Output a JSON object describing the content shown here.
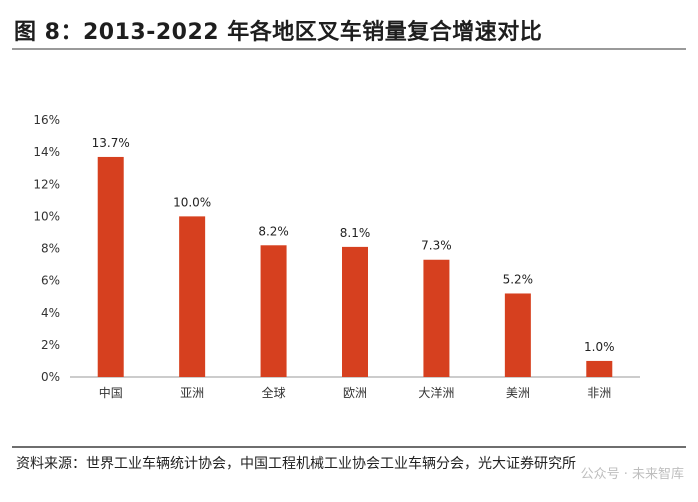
{
  "header": {
    "title": "图 8：2013-2022 年各地区叉车销量复合增速对比"
  },
  "chart_data": {
    "type": "bar",
    "categories": [
      "中国",
      "亚洲",
      "全球",
      "欧洲",
      "大洋洲",
      "美洲",
      "非洲"
    ],
    "values": [
      13.7,
      10.0,
      8.2,
      8.1,
      7.3,
      5.2,
      1.0
    ],
    "data_labels": [
      "13.7%",
      "10.0%",
      "8.2%",
      "8.1%",
      "7.3%",
      "5.2%",
      "1.0%"
    ],
    "yticks": [
      "0%",
      "2%",
      "4%",
      "6%",
      "8%",
      "10%",
      "12%",
      "14%",
      "16%"
    ],
    "ylim": [
      0,
      16
    ],
    "grid": false,
    "bar_color": "#d6401f"
  },
  "footer": {
    "source": "资料来源：世界工业车辆统计协会，中国工程机械工业协会工业车辆分会，光大证券研究所",
    "watermark": "公众号 · 未来智库"
  }
}
